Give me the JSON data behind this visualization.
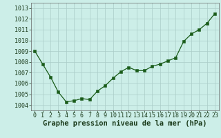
{
  "x": [
    0,
    1,
    2,
    3,
    4,
    5,
    6,
    7,
    8,
    9,
    10,
    11,
    12,
    13,
    14,
    15,
    16,
    17,
    18,
    19,
    20,
    21,
    22,
    23
  ],
  "y": [
    1009.0,
    1007.8,
    1006.6,
    1005.2,
    1004.3,
    1004.4,
    1004.6,
    1004.5,
    1005.3,
    1005.8,
    1006.5,
    1007.1,
    1007.5,
    1007.2,
    1007.2,
    1007.6,
    1007.8,
    1008.1,
    1008.4,
    1009.9,
    1010.6,
    1011.0,
    1011.6,
    1012.5
  ],
  "ylim": [
    1003.5,
    1013.5
  ],
  "yticks": [
    1004,
    1005,
    1006,
    1007,
    1008,
    1009,
    1010,
    1011,
    1012,
    1013
  ],
  "xticks": [
    0,
    1,
    2,
    3,
    4,
    5,
    6,
    7,
    8,
    9,
    10,
    11,
    12,
    13,
    14,
    15,
    16,
    17,
    18,
    19,
    20,
    21,
    22,
    23
  ],
  "xlabel": "Graphe pression niveau de la mer (hPa)",
  "line_color": "#1a5c1a",
  "marker_color": "#1a5c1a",
  "bg_color": "#cceee8",
  "grid_color": "#aaccc8",
  "xlabel_fontsize": 7.5,
  "tick_fontsize": 6.0
}
